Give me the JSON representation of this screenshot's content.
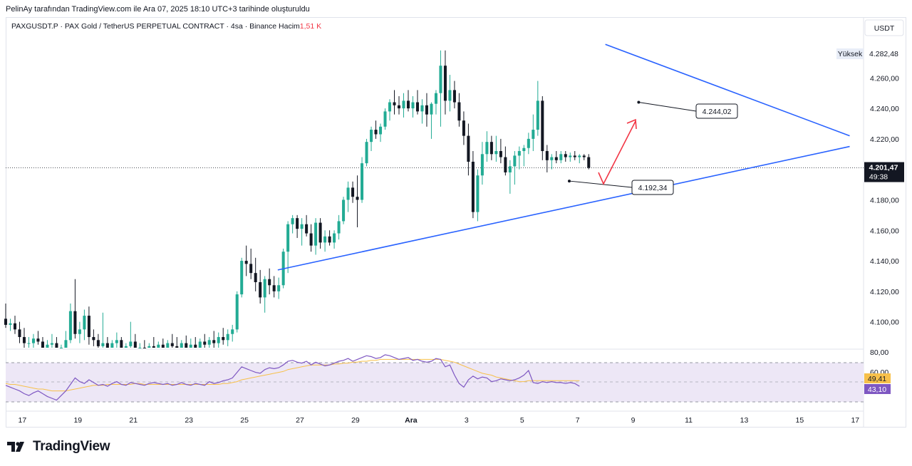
{
  "attribution": "PelinAy tarafından TradingView.com ile Ara 07, 2025 18:10 UTC+3 tarihinde oluşturuldu",
  "legend": {
    "symbol": "PAXGUSDT.P · PAX Gold / TetherUS PERPETUAL CONTRACT · 4sa · Binance",
    "volume_label": "Hacim",
    "volume_value": "1,51 K"
  },
  "currency_button": "USDT",
  "high_label": "Yüksek",
  "high_value": "4.282,48",
  "last_price": "4.201,47",
  "countdown": "49:38",
  "annotations": {
    "upper_target": "4.244,02",
    "lower_support": "4.192,34"
  },
  "rsi": {
    "value_signal": "49,41",
    "value_rsi": "43,10",
    "levels": [
      "80,00",
      "60,00"
    ]
  },
  "brand": "TradingView",
  "colors": {
    "up": "#22ab94",
    "down": "#131722",
    "trendline": "#2962ff",
    "arrow": "#f23645",
    "rsi_line": "#7e57c2",
    "rsi_signal": "#f7c04a",
    "rsi_band": "#ede7f6"
  },
  "chart_data": {
    "type": "candlestick",
    "title": "PAXGUSDT.P · PAX Gold / TetherUS PERPETUAL CONTRACT · 4sa · Binance",
    "y_ticks": [
      4100,
      4120,
      4140,
      4160,
      4180,
      4200,
      4220,
      4240,
      4260
    ],
    "y_tick_labels": [
      "4.100,00",
      "4.120,00",
      "4.140,00",
      "4.160,00",
      "4.180,00",
      "4.200,00",
      "4.220,00",
      "4.240,00",
      "4.260,00"
    ],
    "ylim": [
      4083,
      4298
    ],
    "x_labels": [
      "17",
      "19",
      "21",
      "23",
      "25",
      "27",
      "29",
      "Ara",
      "3",
      "5",
      "7",
      "9",
      "11",
      "13",
      "15",
      "17"
    ],
    "x_label_days": [
      17,
      19,
      21,
      23,
      25,
      27,
      29,
      31,
      33,
      35,
      37,
      39,
      41,
      43,
      45,
      47
    ],
    "xlim": [
      16.4,
      47.3
    ],
    "candles_per_day": 6,
    "first_candle_day": 16.4,
    "ohlc": [
      [
        4102,
        4112,
        4096,
        4098
      ],
      [
        4098,
        4102,
        4094,
        4099
      ],
      [
        4099,
        4104,
        4092,
        4095
      ],
      [
        4095,
        4100,
        4086,
        4090
      ],
      [
        4090,
        4096,
        4083,
        4086
      ],
      [
        4086,
        4090,
        4082,
        4086
      ],
      [
        4086,
        4092,
        4083,
        4089
      ],
      [
        4089,
        4094,
        4085,
        4087
      ],
      [
        4087,
        4090,
        4080,
        4083
      ],
      [
        4083,
        4088,
        4079,
        4085
      ],
      [
        4085,
        4092,
        4082,
        4086
      ],
      [
        4086,
        4090,
        4078,
        4080
      ],
      [
        4080,
        4085,
        4074,
        4082
      ],
      [
        4082,
        4094,
        4080,
        4088
      ],
      [
        4088,
        4112,
        4086,
        4107
      ],
      [
        4107,
        4128,
        4089,
        4092
      ],
      [
        4092,
        4100,
        4086,
        4095
      ],
      [
        4095,
        4108,
        4088,
        4104
      ],
      [
        4104,
        4110,
        4085,
        4090
      ],
      [
        4090,
        4095,
        4084,
        4088
      ],
      [
        4088,
        4092,
        4080,
        4084
      ],
      [
        4084,
        4106,
        4082,
        4086
      ],
      [
        4086,
        4090,
        4080,
        4083
      ],
      [
        4083,
        4088,
        4078,
        4086
      ],
      [
        4086,
        4093,
        4082,
        4088
      ],
      [
        4088,
        4090,
        4080,
        4082
      ],
      [
        4082,
        4086,
        4076,
        4084
      ],
      [
        4084,
        4100,
        4082,
        4087
      ],
      [
        4087,
        4092,
        4078,
        4080
      ],
      [
        4080,
        4086,
        4075,
        4083
      ],
      [
        4083,
        4088,
        4078,
        4081
      ],
      [
        4081,
        4086,
        4077,
        4084
      ],
      [
        4084,
        4090,
        4080,
        4082
      ],
      [
        4082,
        4087,
        4079,
        4085
      ],
      [
        4085,
        4089,
        4080,
        4083
      ],
      [
        4083,
        4088,
        4078,
        4086
      ],
      [
        4086,
        4092,
        4080,
        4084
      ],
      [
        4084,
        4090,
        4078,
        4082
      ],
      [
        4082,
        4088,
        4077,
        4086
      ],
      [
        4086,
        4091,
        4081,
        4083
      ],
      [
        4083,
        4089,
        4079,
        4085
      ],
      [
        4085,
        4090,
        4080,
        4083
      ],
      [
        4083,
        4089,
        4078,
        4087
      ],
      [
        4087,
        4092,
        4082,
        4085
      ],
      [
        4085,
        4090,
        4080,
        4088
      ],
      [
        4088,
        4094,
        4083,
        4086
      ],
      [
        4086,
        4093,
        4082,
        4090
      ],
      [
        4090,
        4096,
        4085,
        4088
      ],
      [
        4088,
        4095,
        4084,
        4092
      ],
      [
        4092,
        4098,
        4087,
        4095
      ],
      [
        4095,
        4120,
        4093,
        4118
      ],
      [
        4118,
        4142,
        4116,
        4140
      ],
      [
        4140,
        4150,
        4130,
        4138
      ],
      [
        4138,
        4148,
        4128,
        4132
      ],
      [
        4132,
        4142,
        4120,
        4126
      ],
      [
        4126,
        4134,
        4112,
        4116
      ],
      [
        4116,
        4130,
        4106,
        4128
      ],
      [
        4128,
        4135,
        4118,
        4124
      ],
      [
        4124,
        4130,
        4116,
        4120
      ],
      [
        4120,
        4129,
        4115,
        4124
      ],
      [
        4124,
        4148,
        4122,
        4146
      ],
      [
        4146,
        4166,
        4132,
        4164
      ],
      [
        4164,
        4170,
        4158,
        4168
      ],
      [
        4168,
        4170,
        4155,
        4161
      ],
      [
        4161,
        4168,
        4150,
        4164
      ],
      [
        4164,
        4170,
        4156,
        4158
      ],
      [
        4158,
        4164,
        4146,
        4150
      ],
      [
        4150,
        4168,
        4144,
        4165
      ],
      [
        4165,
        4168,
        4148,
        4152
      ],
      [
        4152,
        4160,
        4146,
        4156
      ],
      [
        4156,
        4160,
        4150,
        4152
      ],
      [
        4152,
        4160,
        4148,
        4158
      ],
      [
        4158,
        4170,
        4154,
        4166
      ],
      [
        4166,
        4182,
        4164,
        4180
      ],
      [
        4180,
        4192,
        4172,
        4188
      ],
      [
        4188,
        4192,
        4178,
        4182
      ],
      [
        4182,
        4196,
        4162,
        4180
      ],
      [
        4180,
        4208,
        4178,
        4204
      ],
      [
        4204,
        4220,
        4202,
        4218
      ],
      [
        4218,
        4228,
        4212,
        4226
      ],
      [
        4226,
        4232,
        4220,
        4223
      ],
      [
        4223,
        4230,
        4218,
        4228
      ],
      [
        4228,
        4240,
        4226,
        4238
      ],
      [
        4238,
        4246,
        4232,
        4244
      ],
      [
        4244,
        4252,
        4236,
        4242
      ],
      [
        4242,
        4248,
        4236,
        4240
      ],
      [
        4240,
        4250,
        4234,
        4245
      ],
      [
        4245,
        4252,
        4238,
        4240
      ],
      [
        4240,
        4248,
        4234,
        4244
      ],
      [
        4244,
        4252,
        4236,
        4238
      ],
      [
        4238,
        4246,
        4230,
        4242
      ],
      [
        4242,
        4250,
        4228,
        4236
      ],
      [
        4236,
        4244,
        4220,
        4243
      ],
      [
        4243,
        4252,
        4236,
        4250
      ],
      [
        4250,
        4278,
        4228,
        4268
      ],
      [
        4268,
        4278,
        4236,
        4245
      ],
      [
        4245,
        4262,
        4238,
        4252
      ],
      [
        4252,
        4258,
        4240,
        4244
      ],
      [
        4244,
        4250,
        4228,
        4232
      ],
      [
        4232,
        4238,
        4216,
        4222
      ],
      [
        4222,
        4230,
        4196,
        4205
      ],
      [
        4205,
        4212,
        4168,
        4172
      ],
      [
        4172,
        4200,
        4166,
        4196
      ],
      [
        4196,
        4218,
        4190,
        4210
      ],
      [
        4210,
        4225,
        4205,
        4218
      ],
      [
        4218,
        4222,
        4206,
        4210
      ],
      [
        4210,
        4222,
        4205,
        4212
      ],
      [
        4212,
        4220,
        4204,
        4208
      ],
      [
        4208,
        4215,
        4196,
        4198
      ],
      [
        4198,
        4206,
        4184,
        4202
      ],
      [
        4202,
        4212,
        4190,
        4209
      ],
      [
        4209,
        4215,
        4200,
        4212
      ],
      [
        4212,
        4216,
        4202,
        4214
      ],
      [
        4214,
        4224,
        4210,
        4220
      ],
      [
        4220,
        4236,
        4212,
        4226
      ],
      [
        4226,
        4258,
        4222,
        4245
      ],
      [
        4245,
        4248,
        4206,
        4212
      ],
      [
        4212,
        4216,
        4198,
        4206
      ],
      [
        4206,
        4210,
        4200,
        4208
      ],
      [
        4208,
        4212,
        4204,
        4206
      ],
      [
        4206,
        4212,
        4204,
        4210
      ],
      [
        4210,
        4212,
        4205,
        4208
      ],
      [
        4208,
        4211,
        4205,
        4209
      ],
      [
        4209,
        4212,
        4206,
        4208
      ],
      [
        4208,
        4210,
        4204,
        4209
      ],
      [
        4209,
        4210,
        4206,
        4208
      ],
      [
        4208,
        4210,
        4200,
        4201
      ]
    ],
    "series": [
      {
        "name": "RSI",
        "color": "#7e57c2",
        "ylim": [
          20,
          80
        ],
        "values": [
          44,
          42,
          40,
          38,
          35,
          33,
          36,
          38,
          35,
          32,
          30,
          28,
          33,
          38,
          45,
          52,
          48,
          46,
          50,
          47,
          44,
          45,
          43,
          46,
          48,
          45,
          44,
          47,
          46,
          45,
          44,
          46,
          47,
          46,
          45,
          46,
          44,
          45,
          47,
          45,
          44,
          46,
          45,
          44,
          48,
          46,
          47,
          49,
          50,
          52,
          58,
          64,
          62,
          60,
          58,
          57,
          61,
          63,
          62,
          63,
          66,
          70,
          71,
          69,
          68,
          70,
          66,
          69,
          67,
          65,
          66,
          68,
          70,
          71,
          73,
          70,
          72,
          74,
          76,
          75,
          73,
          74,
          77,
          76,
          74,
          72,
          73,
          74,
          71,
          72,
          70,
          69,
          70,
          73,
          72,
          64,
          66,
          55,
          46,
          42,
          50,
          54,
          51,
          53,
          52,
          48,
          49,
          51,
          50,
          49,
          50,
          52,
          55,
          60,
          47,
          46,
          48,
          47,
          48,
          47,
          47,
          46,
          47,
          46,
          43
        ]
      },
      {
        "name": "RSI-MA",
        "color": "#f7c04a",
        "ylim": [
          20,
          80
        ],
        "values": [
          46,
          45,
          45,
          44,
          43,
          42,
          41,
          40,
          40,
          39,
          38,
          38,
          38,
          38,
          39,
          40,
          41,
          42,
          43,
          44,
          44,
          44,
          45,
          45,
          45,
          45,
          45,
          45,
          46,
          46,
          45,
          45,
          45,
          45,
          45,
          45,
          45,
          45,
          45,
          45,
          45,
          45,
          45,
          45,
          45,
          45,
          45,
          46,
          46,
          47,
          48,
          50,
          51,
          52,
          53,
          54,
          55,
          56,
          57,
          58,
          59,
          61,
          62,
          63,
          64,
          65,
          66,
          66,
          66,
          66,
          66,
          67,
          67,
          68,
          68,
          69,
          69,
          70,
          70,
          71,
          71,
          72,
          72,
          72,
          72,
          72,
          72,
          72,
          72,
          72,
          72,
          72,
          72,
          72,
          72,
          71,
          70,
          69,
          67,
          65,
          63,
          61,
          59,
          57,
          56,
          55,
          53,
          52,
          51,
          50,
          49,
          48,
          48,
          49,
          49,
          49,
          49,
          49,
          49,
          49,
          49,
          49,
          49,
          49,
          49
        ]
      }
    ],
    "trendlines": [
      {
        "from": [
          38.0,
          4282
        ],
        "to": [
          46.8,
          4222
        ]
      },
      {
        "from": [
          26.2,
          4134
        ],
        "to": [
          46.8,
          4215
        ]
      }
    ],
    "levels": [
      {
        "label": "4.244,02",
        "day": 39.2,
        "price": 4244.02
      },
      {
        "label": "4.192,34",
        "day": 36.7,
        "price": 4192.34
      }
    ]
  }
}
